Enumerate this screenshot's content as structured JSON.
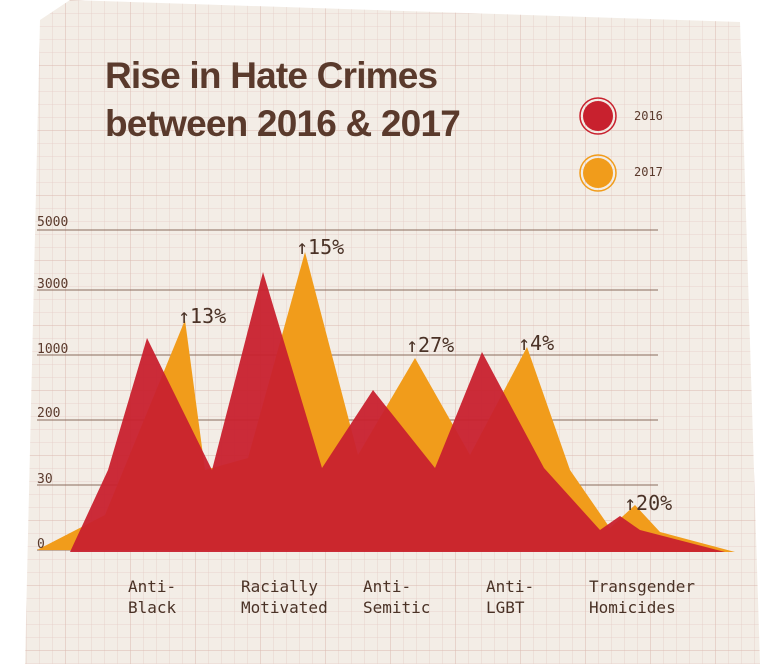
{
  "chart_data": {
    "type": "area",
    "title_line1": "Rise in Hate Crimes",
    "title_line2": "between 2016 & 2017",
    "y_ticks": [
      "5000",
      "3000",
      "1000",
      "200",
      "30",
      "0"
    ],
    "categories": [
      {
        "line1": "Anti-",
        "line2": "Black"
      },
      {
        "line1": "Racially",
        "line2": "Motivated"
      },
      {
        "line1": "Anti-",
        "line2": "Semitic"
      },
      {
        "line1": "Anti-",
        "line2": "LGBT"
      },
      {
        "line1": "Transgender",
        "line2": "Homicides"
      }
    ],
    "changes": [
      "↑13%",
      "↑15%",
      "↑27%",
      "↑4%",
      "↑20%"
    ],
    "series": [
      {
        "name": "2016",
        "color": "#c8212e"
      },
      {
        "name": "2017",
        "color": "#f19c1b"
      }
    ],
    "grid": true,
    "legend_position": "top-right"
  }
}
